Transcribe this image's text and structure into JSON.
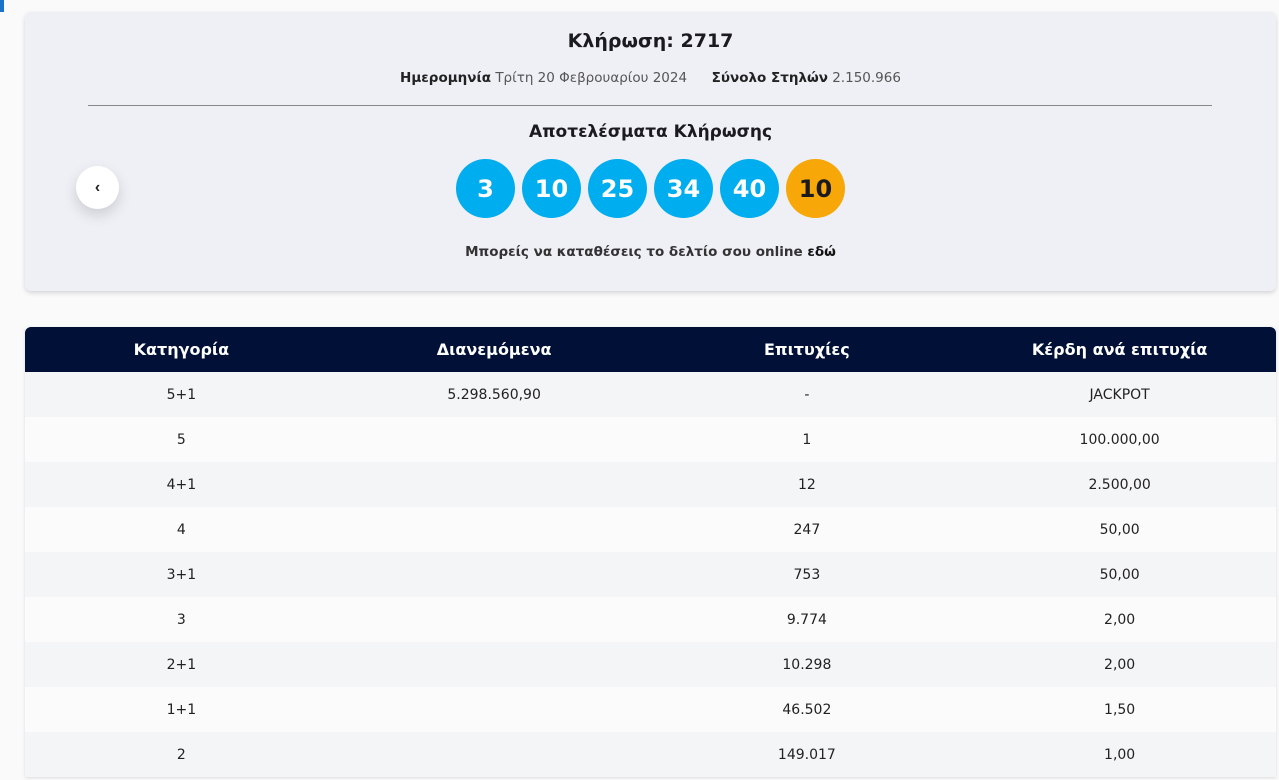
{
  "header": {
    "title": "Κλήρωση: 2717",
    "date_label": "Ημερομηνία",
    "date": "Τρίτη 20 Φεβρουαρίου 2024",
    "columns_label": "Σύνολο Στηλών",
    "columns": "2.150.966"
  },
  "results": {
    "title": "Αποτελέσματα Κλήρωσης",
    "balls": [
      3,
      10,
      25,
      34,
      40
    ],
    "bonus": 10,
    "note": "Μπορείς να καταθέσεις το δελτίο σου online",
    "link": "εδώ"
  },
  "table": {
    "headers": [
      "Κατηγορία",
      "Διανεμόμενα",
      "Επιτυχίες",
      "Κέρδη ανά επιτυχία"
    ],
    "rows": [
      {
        "category": "5+1",
        "distributed": "5.298.560,90",
        "winners": "-",
        "prize": "JACKPOT"
      },
      {
        "category": "5",
        "winners": "1",
        "prize": "100.000,00"
      },
      {
        "category": "4+1",
        "winners": "12",
        "prize": "2.500,00"
      },
      {
        "category": "4",
        "winners": "247",
        "prize": "50,00"
      },
      {
        "category": "3+1",
        "winners": "753",
        "prize": "50,00"
      },
      {
        "category": "3",
        "winners": "9.774",
        "prize": "2,00"
      },
      {
        "category": "2+1",
        "winners": "10.298",
        "prize": "2,00"
      },
      {
        "category": "1+1",
        "winners": "46.502",
        "prize": "1,50"
      },
      {
        "category": "2",
        "winners": "149.017",
        "prize": "1,00"
      }
    ]
  }
}
